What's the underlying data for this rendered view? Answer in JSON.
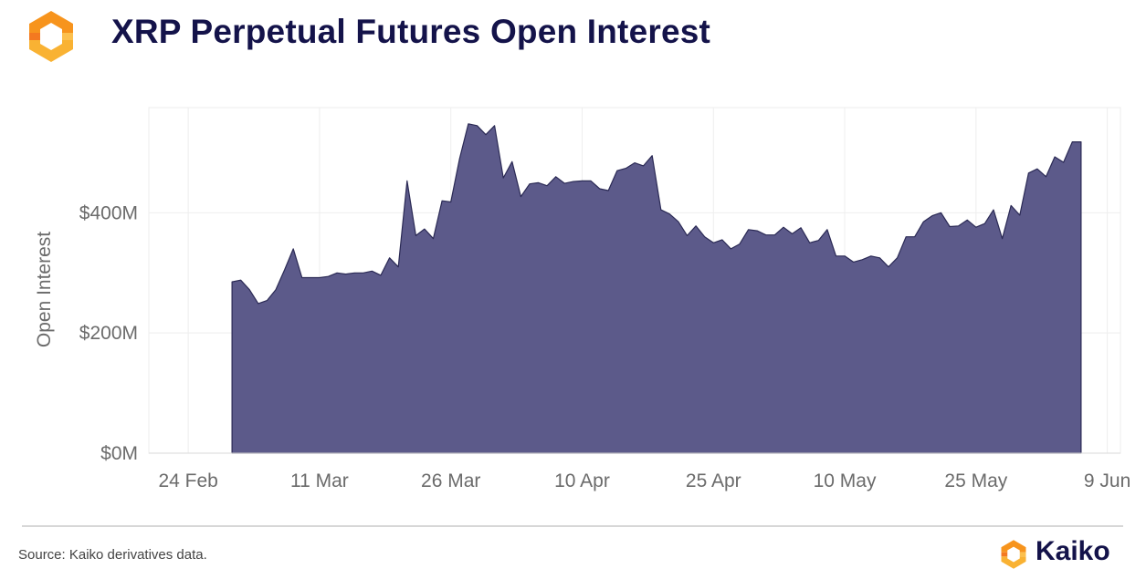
{
  "header": {
    "title": "XRP Perpetual Futures Open Interest",
    "logo_icon": "kaiko-logo-icon"
  },
  "footer": {
    "source": "Source: Kaiko derivatives data.",
    "brand_name": "Kaiko",
    "brand_icon": "kaiko-logo-icon"
  },
  "colors": {
    "area_fill": "#5c5a8a",
    "area_stroke": "#2b2a55",
    "title": "#14134a",
    "logo_orange": "#f7941d"
  },
  "chart_data": {
    "type": "area",
    "title": "",
    "xlabel": "",
    "ylabel": "Open Interest",
    "x_unit": "days since 24 Feb",
    "x_ticks": [
      {
        "label": "24 Feb",
        "day": 0
      },
      {
        "label": "11 Mar",
        "day": 15
      },
      {
        "label": "26 Mar",
        "day": 30
      },
      {
        "label": "10 Apr",
        "day": 45
      },
      {
        "label": "25 Apr",
        "day": 60
      },
      {
        "label": "10 May",
        "day": 75
      },
      {
        "label": "25 May",
        "day": 90
      },
      {
        "label": "9 Jun",
        "day": 105
      }
    ],
    "y_ticks": [
      {
        "label": "$0M",
        "value": 0
      },
      {
        "label": "$200M",
        "value": 200
      },
      {
        "label": "$400M",
        "value": 400
      }
    ],
    "ylim": [
      0,
      575
    ],
    "xlim": [
      -4.5,
      106.5
    ],
    "grid": true,
    "series": [
      {
        "name": "",
        "x": [
          5,
          6,
          7,
          8,
          9,
          10,
          11,
          12,
          13,
          14,
          15,
          16,
          17,
          18,
          19,
          20,
          21,
          22,
          23,
          24,
          25,
          26,
          27,
          28,
          29,
          30,
          31,
          32,
          33,
          34,
          35,
          36,
          37,
          38,
          39,
          40,
          41,
          42,
          43,
          44,
          45,
          46,
          47,
          48,
          49,
          50,
          51,
          52,
          53,
          54,
          55,
          56,
          57,
          58,
          59,
          60,
          61,
          62,
          63,
          64,
          65,
          66,
          67,
          68,
          69,
          70,
          71,
          72,
          73,
          74,
          75,
          76,
          77,
          78,
          79,
          80,
          81,
          82,
          83,
          84,
          85,
          86,
          87,
          88,
          89,
          90,
          91,
          92,
          93,
          94,
          95,
          96,
          97,
          98,
          99,
          100,
          101,
          102
        ],
        "values": [
          285,
          288,
          272,
          249,
          254,
          272,
          305,
          340,
          292,
          292,
          292,
          294,
          300,
          298,
          300,
          300,
          303,
          296,
          325,
          310,
          453,
          362,
          373,
          357,
          420,
          418,
          490,
          548,
          545,
          530,
          545,
          458,
          485,
          427,
          448,
          450,
          445,
          460,
          449,
          452,
          453,
          453,
          440,
          437,
          470,
          474,
          483,
          478,
          495,
          405,
          398,
          385,
          362,
          378,
          360,
          350,
          355,
          340,
          348,
          372,
          370,
          363,
          363,
          376,
          365,
          375,
          350,
          354,
          372,
          328,
          328,
          318,
          322,
          328,
          325,
          310,
          325,
          360,
          360,
          385,
          395,
          400,
          377,
          378,
          388,
          376,
          382,
          405,
          357,
          412,
          396,
          466,
          473,
          460,
          493,
          484,
          518,
          518
        ]
      }
    ]
  }
}
